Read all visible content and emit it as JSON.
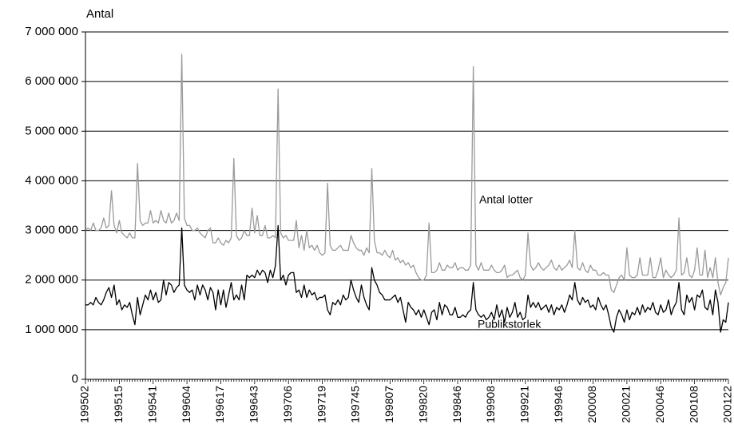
{
  "chart_data": {
    "type": "line",
    "ylabel": "Antal",
    "categories": [
      "199502",
      null,
      null,
      null,
      null,
      null,
      null,
      null,
      null,
      null,
      null,
      null,
      null,
      "199515",
      null,
      null,
      null,
      null,
      null,
      null,
      null,
      null,
      null,
      null,
      null,
      null,
      "199541",
      null,
      null,
      null,
      null,
      null,
      null,
      null,
      null,
      null,
      null,
      null,
      null,
      "199604",
      null,
      null,
      null,
      null,
      null,
      null,
      null,
      null,
      null,
      null,
      null,
      null,
      "199617",
      null,
      null,
      null,
      null,
      null,
      null,
      null,
      null,
      null,
      null,
      null,
      null,
      "199643",
      null,
      null,
      null,
      null,
      null,
      null,
      null,
      null,
      null,
      null,
      null,
      null,
      "199706",
      null,
      null,
      null,
      null,
      null,
      null,
      null,
      null,
      null,
      null,
      null,
      null,
      "199719",
      null,
      null,
      null,
      null,
      null,
      null,
      null,
      null,
      null,
      null,
      null,
      null,
      "199745",
      null,
      null,
      null,
      null,
      null,
      null,
      null,
      null,
      null,
      null,
      null,
      null,
      "199807",
      null,
      null,
      null,
      null,
      null,
      null,
      null,
      null,
      null,
      null,
      null,
      null,
      "199820",
      null,
      null,
      null,
      null,
      null,
      null,
      null,
      null,
      null,
      null,
      null,
      null,
      "199846",
      null,
      null,
      null,
      null,
      null,
      null,
      null,
      null,
      null,
      null,
      null,
      null,
      "199908",
      null,
      null,
      null,
      null,
      null,
      null,
      null,
      null,
      null,
      null,
      null,
      null,
      "199921",
      null,
      null,
      null,
      null,
      null,
      null,
      null,
      null,
      null,
      null,
      null,
      null,
      "199946",
      null,
      null,
      null,
      null,
      null,
      null,
      null,
      null,
      null,
      null,
      null,
      null,
      "200008",
      null,
      null,
      null,
      null,
      null,
      null,
      null,
      null,
      null,
      null,
      null,
      null,
      "200021",
      null,
      null,
      null,
      null,
      null,
      null,
      null,
      null,
      null,
      null,
      null,
      null,
      "200046",
      null,
      null,
      null,
      null,
      null,
      null,
      null,
      null,
      null,
      null,
      null,
      null,
      "200108",
      null,
      null,
      null,
      null,
      null,
      null,
      null,
      null,
      null,
      null,
      null,
      null,
      "200122"
    ],
    "series": [
      {
        "name": "Antal lotter",
        "color": "#9a9a9a",
        "values": [
          3000000,
          3050000,
          3000000,
          3150000,
          3000000,
          3000000,
          3050000,
          3250000,
          3050000,
          3100000,
          3800000,
          3100000,
          2950000,
          3200000,
          2950000,
          2900000,
          2850000,
          2950000,
          2850000,
          2850000,
          4350000,
          3200000,
          3100000,
          3150000,
          3150000,
          3400000,
          3150000,
          3200000,
          3150000,
          3400000,
          3200000,
          3150000,
          3350000,
          3150000,
          3200000,
          3350000,
          3200000,
          6550000,
          3250000,
          3100000,
          3100000,
          3000000,
          3000000,
          3050000,
          2950000,
          2900000,
          2850000,
          3000000,
          3050000,
          2750000,
          2750000,
          2850000,
          2750000,
          2700000,
          2800000,
          2750000,
          2850000,
          4450000,
          2900000,
          2800000,
          2850000,
          3000000,
          2900000,
          2900000,
          3450000,
          2950000,
          3300000,
          2900000,
          2900000,
          3100000,
          2850000,
          2850000,
          2900000,
          2850000,
          5850000,
          2950000,
          2850000,
          2900000,
          2800000,
          2800000,
          2800000,
          3200000,
          2650000,
          2900000,
          2600000,
          3000000,
          2650000,
          2700000,
          2600000,
          2700000,
          2550000,
          2500000,
          2550000,
          3950000,
          2700000,
          2600000,
          2600000,
          2650000,
          2700000,
          2600000,
          2600000,
          2600000,
          2900000,
          2750000,
          2650000,
          2600000,
          2600000,
          2500000,
          2650000,
          2550000,
          4250000,
          2800000,
          2550000,
          2550000,
          2500000,
          2600000,
          2500000,
          2450000,
          2600000,
          2400000,
          2450000,
          2350000,
          2400000,
          2300000,
          2350000,
          2250000,
          2300000,
          2150000,
          2050000,
          2000000,
          2000000,
          2100000,
          3150000,
          2150000,
          2150000,
          2200000,
          2350000,
          2200000,
          2200000,
          2300000,
          2250000,
          2250000,
          2350000,
          2200000,
          2250000,
          2250000,
          2200000,
          2200000,
          2300000,
          6300000,
          2300000,
          2200000,
          2350000,
          2200000,
          2200000,
          2200000,
          2300000,
          2200000,
          2150000,
          2150000,
          2200000,
          2300000,
          2050000,
          2100000,
          2100000,
          2150000,
          2200000,
          2050000,
          2000000,
          2100000,
          2950000,
          2300000,
          2200000,
          2250000,
          2350000,
          2250000,
          2200000,
          2250000,
          2300000,
          2400000,
          2250000,
          2200000,
          2300000,
          2200000,
          2250000,
          2300000,
          2400000,
          2250000,
          3000000,
          2250000,
          2200000,
          2350000,
          2200000,
          2150000,
          2300000,
          2200000,
          2200000,
          2100000,
          2100000,
          2150000,
          2100000,
          2100000,
          1800000,
          1750000,
          1900000,
          2050000,
          2100000,
          2000000,
          2650000,
          2100000,
          2050000,
          2050000,
          2100000,
          2450000,
          2100000,
          2100000,
          2100000,
          2450000,
          2050000,
          2050000,
          2200000,
          2450000,
          2050000,
          2200000,
          2100000,
          2050000,
          2100000,
          2200000,
          3250000,
          2100000,
          2150000,
          2450000,
          2100000,
          2050000,
          2200000,
          2650000,
          2100000,
          2100000,
          2600000,
          2050000,
          2250000,
          2050000,
          2450000,
          1950000,
          1700000,
          1850000,
          1950000,
          2450000
        ]
      },
      {
        "name": "Publikstorlek",
        "color": "#000000",
        "values": [
          1500000,
          1500000,
          1550000,
          1500000,
          1650000,
          1550000,
          1500000,
          1600000,
          1750000,
          1850000,
          1650000,
          1900000,
          1500000,
          1600000,
          1400000,
          1500000,
          1450000,
          1550000,
          1300000,
          1100000,
          1650000,
          1300000,
          1500000,
          1700000,
          1600000,
          1800000,
          1600000,
          1750000,
          1550000,
          1600000,
          2000000,
          1700000,
          1950000,
          1900000,
          1750000,
          1850000,
          1900000,
          3050000,
          1900000,
          1800000,
          1750000,
          1800000,
          1600000,
          1900000,
          1700000,
          1900000,
          1800000,
          1600000,
          1850000,
          1750000,
          1400000,
          1800000,
          1500000,
          1800000,
          1450000,
          1700000,
          1950000,
          1600000,
          1700000,
          1600000,
          1900000,
          1600000,
          2100000,
          2050000,
          2100000,
          2050000,
          2200000,
          2100000,
          2200000,
          2150000,
          1950000,
          2200000,
          2050000,
          2300000,
          3100000,
          2000000,
          2100000,
          1900000,
          2100000,
          2150000,
          2150000,
          1750000,
          1800000,
          1650000,
          1900000,
          1650000,
          1800000,
          1700000,
          1750000,
          1600000,
          1650000,
          1650000,
          1700000,
          1400000,
          1300000,
          1550000,
          1500000,
          1600000,
          1500000,
          1700000,
          1600000,
          1650000,
          2000000,
          1800000,
          1650000,
          1550000,
          1900000,
          1650000,
          1500000,
          1400000,
          2250000,
          2000000,
          1900000,
          1750000,
          1700000,
          1600000,
          1600000,
          1600000,
          1650000,
          1700000,
          1550000,
          1650000,
          1400000,
          1150000,
          1550000,
          1450000,
          1400000,
          1300000,
          1400000,
          1250000,
          1400000,
          1250000,
          1100000,
          1350000,
          1400000,
          1200000,
          1550000,
          1300000,
          1500000,
          1450000,
          1300000,
          1300000,
          1450000,
          1250000,
          1250000,
          1300000,
          1250000,
          1350000,
          1400000,
          1950000,
          1400000,
          1300000,
          1250000,
          1300000,
          1200000,
          1250000,
          1350000,
          1200000,
          1500000,
          1250000,
          1400000,
          1150000,
          1450000,
          1250000,
          1350000,
          1550000,
          1250000,
          1350000,
          1200000,
          1250000,
          1700000,
          1450000,
          1550000,
          1450000,
          1550000,
          1400000,
          1450000,
          1500000,
          1350000,
          1500000,
          1300000,
          1450000,
          1400000,
          1500000,
          1350000,
          1500000,
          1700000,
          1600000,
          1950000,
          1600000,
          1500000,
          1650000,
          1550000,
          1600000,
          1450000,
          1500000,
          1400000,
          1650000,
          1500000,
          1400000,
          1500000,
          1300000,
          1050000,
          950000,
          1250000,
          1400000,
          1300000,
          1150000,
          1400000,
          1200000,
          1350000,
          1300000,
          1450000,
          1300000,
          1500000,
          1350000,
          1450000,
          1400000,
          1550000,
          1350000,
          1300000,
          1500000,
          1350000,
          1400000,
          1600000,
          1300000,
          1450000,
          1550000,
          1950000,
          1400000,
          1300000,
          1700000,
          1550000,
          1650000,
          1400000,
          1700000,
          1650000,
          1800000,
          1450000,
          1400000,
          1600000,
          1300000,
          1800000,
          1550000,
          950000,
          1200000,
          1150000,
          1550000
        ]
      }
    ],
    "ylim": [
      0,
      7000000
    ],
    "yticks": [
      0,
      {
        "value": 1000000,
        "label": "1 000 000"
      },
      {
        "value": 2000000,
        "label": "2 000 000"
      },
      {
        "value": 3000000,
        "label": "3 000 000"
      },
      {
        "value": 4000000,
        "label": "4 000 000"
      },
      {
        "value": 5000000,
        "label": "5 000 000"
      },
      {
        "value": 6000000,
        "label": "6 000 000"
      },
      {
        "value": 7000000,
        "label": "7 000 000"
      }
    ],
    "grid": true
  }
}
